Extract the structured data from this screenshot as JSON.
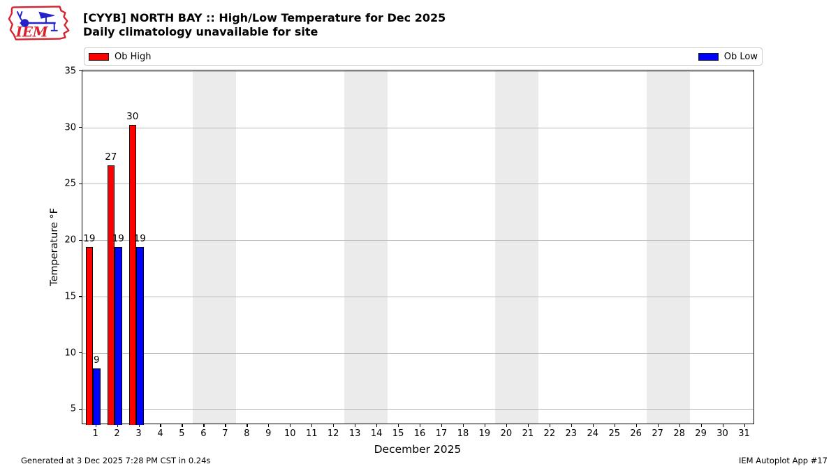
{
  "header": {
    "logo_text": "IEM"
  },
  "legend": {
    "high_label": "Ob High",
    "low_label": "Ob Low"
  },
  "chart_data": {
    "type": "bar",
    "title": "[CYYB] NORTH BAY :: High/Low Temperature for Dec 2025",
    "subtitle": "Daily climatology unavailable for site",
    "xlabel": "December 2025",
    "ylabel": "Temperature °F",
    "xlim": [
      0.4,
      31.5
    ],
    "ylim": [
      3.6,
      35.05
    ],
    "xticks": [
      1,
      2,
      3,
      4,
      5,
      6,
      7,
      8,
      9,
      10,
      11,
      12,
      13,
      14,
      15,
      16,
      17,
      18,
      19,
      20,
      21,
      22,
      23,
      24,
      25,
      26,
      27,
      28,
      29,
      30,
      31
    ],
    "yticks": [
      5,
      10,
      15,
      20,
      25,
      30,
      35
    ],
    "grid": "horizontal",
    "legend_position": "top",
    "weekend_bands": [
      [
        5.5,
        7.5
      ],
      [
        12.5,
        14.5
      ],
      [
        19.5,
        21.5
      ],
      [
        26.5,
        28.5
      ]
    ],
    "colors": {
      "high": "#ff0000",
      "low": "#0000ff",
      "band": "#ebebeb",
      "grid": "#b9b9b9"
    },
    "series": [
      {
        "name": "Ob High",
        "color": "#ff0000",
        "days": [
          1,
          2,
          3
        ],
        "values": [
          19.4,
          26.6,
          30.2
        ],
        "labels": [
          "19",
          "27",
          "30"
        ]
      },
      {
        "name": "Ob Low",
        "color": "#0000ff",
        "days": [
          1,
          2,
          3
        ],
        "values": [
          8.6,
          19.4,
          19.4
        ],
        "labels": [
          "9",
          "19",
          "19"
        ]
      }
    ]
  },
  "footer": {
    "left": "Generated at 3 Dec 2025 7:28 PM CST in 0.24s",
    "right": "IEM Autoplot App #17"
  }
}
